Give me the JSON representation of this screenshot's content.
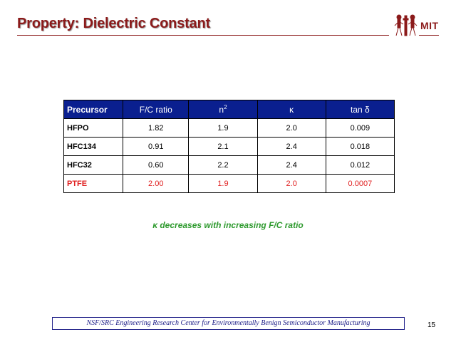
{
  "title": "Property: Dielectric Constant",
  "logo_text": "MIT",
  "table": {
    "headers": {
      "precursor": "Precursor",
      "fc_ratio": "F/C ratio",
      "n_base": "n",
      "n_sup": "2",
      "kappa": "κ",
      "tan_delta": "tan δ"
    },
    "rows": [
      {
        "precursor": "HFPO",
        "fc": "1.82",
        "n2": "1.9",
        "k": "2.0",
        "tan": "0.009"
      },
      {
        "precursor": "HFC134",
        "fc": "0.91",
        "n2": "2.1",
        "k": "2.4",
        "tan": "0.018"
      },
      {
        "precursor": "HFC32",
        "fc": "0.60",
        "n2": "2.2",
        "k": "2.4",
        "tan": "0.012"
      },
      {
        "precursor": "PTFE",
        "fc": "2.00",
        "n2": "1.9",
        "k": "2.0",
        "tan": "0.0007"
      }
    ]
  },
  "note": {
    "symbol": "κ",
    "text": " decreases with increasing F/C ratio"
  },
  "footer": "NSF/SRC Engineering Research Center for Environmentally Benign Semiconductor Manufacturing",
  "page_number": "15",
  "colors": {
    "title": "#8b1a1a",
    "header_bg": "#0a1f8f",
    "highlight": "#e02020",
    "note": "#2e9a2e",
    "footer": "#22228a"
  }
}
